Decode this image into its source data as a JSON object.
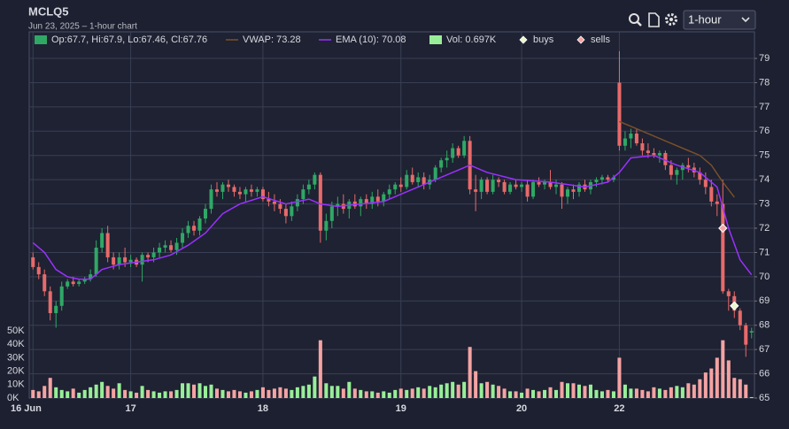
{
  "header": {
    "symbol": "MCLQ5",
    "subtitle": "Jun 23, 2025 – 1-hour chart",
    "interval": "1-hour"
  },
  "chart_data": {
    "type": "candlestick",
    "up_color": "#2fa865",
    "down_color": "#e86a6a",
    "volume_up_color": "#98ee98",
    "volume_down_color": "#f4a3a3",
    "xlim": [
      -0.5,
      125.5
    ],
    "xticks": [
      {
        "value": 0,
        "label": "16 Jun"
      },
      {
        "value": 17,
        "label": "17"
      },
      {
        "value": 40,
        "label": "18"
      },
      {
        "value": 64,
        "label": "19"
      },
      {
        "value": 85,
        "label": "20"
      },
      {
        "value": 102,
        "label": "22"
      }
    ],
    "ylim": [
      65,
      80
    ],
    "yticks": [
      65,
      66,
      67,
      68,
      69,
      70,
      71,
      72,
      73,
      74,
      75,
      76,
      77,
      78,
      79
    ],
    "vlim": [
      0,
      60
    ],
    "vticks": [
      {
        "value": 0,
        "label": "0K"
      },
      {
        "value": 10,
        "label": "10K"
      },
      {
        "value": 20,
        "label": "20K"
      },
      {
        "value": 30,
        "label": "30K"
      },
      {
        "value": 40,
        "label": "40K"
      },
      {
        "value": 50,
        "label": "50K"
      }
    ],
    "grid": true,
    "legend": {
      "ohlc": "Op:67.7, Hi:67.9, Lo:67.46, Cl:67.76",
      "volume": "Vol: 0.697K"
    },
    "candles": [
      [
        70.8,
        71.0,
        70.3,
        70.4
      ],
      [
        70.4,
        70.6,
        69.9,
        70.1
      ],
      [
        70.1,
        70.3,
        69.2,
        69.4
      ],
      [
        69.4,
        69.6,
        68.2,
        68.5
      ],
      [
        68.5,
        69.0,
        67.9,
        68.8
      ],
      [
        68.8,
        69.8,
        68.6,
        69.6
      ],
      [
        69.6,
        69.9,
        69.5,
        69.8
      ],
      [
        69.8,
        70.0,
        69.6,
        69.7
      ],
      [
        69.7,
        69.9,
        69.6,
        69.8
      ],
      [
        69.8,
        70.0,
        69.7,
        69.9
      ],
      [
        69.9,
        70.3,
        69.8,
        70.1
      ],
      [
        70.1,
        71.5,
        70.0,
        71.2
      ],
      [
        71.2,
        72.0,
        71.0,
        71.8
      ],
      [
        71.8,
        72.1,
        70.6,
        70.8
      ],
      [
        70.8,
        71.0,
        70.3,
        70.5
      ],
      [
        70.5,
        71.0,
        70.3,
        70.8
      ],
      [
        70.8,
        71.2,
        70.4,
        70.6
      ],
      [
        70.6,
        70.9,
        70.4,
        70.7
      ],
      [
        70.7,
        70.8,
        70.4,
        70.5
      ],
      [
        70.5,
        71.0,
        69.8,
        70.9
      ],
      [
        70.9,
        71.0,
        70.6,
        70.8
      ],
      [
        70.8,
        71.2,
        70.6,
        71.0
      ],
      [
        71.0,
        71.4,
        70.8,
        71.2
      ],
      [
        71.2,
        71.5,
        71.0,
        71.3
      ],
      [
        71.3,
        71.5,
        71.0,
        71.1
      ],
      [
        71.1,
        71.6,
        70.9,
        71.4
      ],
      [
        71.4,
        72.0,
        71.2,
        71.8
      ],
      [
        71.8,
        72.3,
        71.6,
        72.1
      ],
      [
        72.1,
        72.3,
        71.7,
        71.9
      ],
      [
        71.9,
        72.5,
        71.7,
        72.4
      ],
      [
        72.4,
        73.0,
        72.2,
        72.8
      ],
      [
        72.8,
        73.8,
        72.6,
        73.6
      ],
      [
        73.6,
        73.9,
        73.3,
        73.5
      ],
      [
        73.5,
        73.9,
        73.2,
        73.8
      ],
      [
        73.8,
        74.0,
        73.5,
        73.7
      ],
      [
        73.7,
        73.8,
        73.3,
        73.5
      ],
      [
        73.5,
        73.7,
        73.2,
        73.4
      ],
      [
        73.4,
        73.7,
        73.1,
        73.6
      ],
      [
        73.6,
        73.8,
        73.3,
        73.5
      ],
      [
        73.5,
        73.7,
        73.3,
        73.6
      ],
      [
        73.6,
        73.7,
        73.1,
        73.2
      ],
      [
        73.2,
        73.5,
        72.9,
        73.1
      ],
      [
        73.1,
        73.4,
        72.7,
        73.0
      ],
      [
        73.0,
        73.2,
        72.6,
        72.8
      ],
      [
        72.8,
        73.0,
        72.2,
        72.5
      ],
      [
        72.5,
        73.1,
        72.3,
        72.9
      ],
      [
        72.9,
        73.4,
        72.7,
        73.2
      ],
      [
        73.2,
        73.8,
        73.0,
        73.6
      ],
      [
        73.6,
        74.0,
        73.4,
        73.8
      ],
      [
        73.8,
        74.3,
        73.6,
        74.2
      ],
      [
        74.2,
        74.3,
        71.4,
        71.9
      ],
      [
        71.9,
        72.6,
        71.5,
        72.3
      ],
      [
        72.3,
        73.1,
        72.0,
        72.9
      ],
      [
        72.9,
        73.3,
        72.5,
        73.0
      ],
      [
        73.0,
        73.4,
        72.6,
        72.8
      ],
      [
        72.8,
        73.2,
        72.4,
        73.1
      ],
      [
        73.1,
        73.4,
        72.8,
        72.9
      ],
      [
        72.9,
        73.3,
        72.5,
        73.2
      ],
      [
        73.2,
        73.4,
        72.8,
        73.0
      ],
      [
        73.0,
        73.5,
        72.8,
        73.3
      ],
      [
        73.3,
        73.6,
        72.9,
        73.1
      ],
      [
        73.1,
        73.5,
        72.9,
        73.4
      ],
      [
        73.4,
        73.8,
        73.2,
        73.6
      ],
      [
        73.6,
        73.9,
        73.4,
        73.8
      ],
      [
        73.8,
        74.1,
        73.5,
        73.7
      ],
      [
        73.7,
        74.4,
        73.6,
        74.2
      ],
      [
        74.2,
        74.5,
        73.8,
        73.9
      ],
      [
        73.9,
        74.3,
        73.7,
        74.1
      ],
      [
        74.1,
        74.3,
        73.6,
        73.8
      ],
      [
        73.8,
        74.2,
        73.6,
        74.0
      ],
      [
        74.0,
        74.6,
        73.9,
        74.5
      ],
      [
        74.5,
        74.9,
        74.3,
        74.8
      ],
      [
        74.8,
        75.2,
        74.5,
        74.9
      ],
      [
        74.9,
        75.5,
        74.7,
        75.3
      ],
      [
        75.3,
        75.4,
        74.9,
        75.0
      ],
      [
        75.0,
        75.8,
        74.9,
        75.6
      ],
      [
        75.6,
        75.8,
        73.4,
        73.6
      ],
      [
        73.6,
        74.2,
        72.7,
        73.5
      ],
      [
        73.5,
        74.1,
        73.2,
        74.0
      ],
      [
        74.0,
        74.1,
        73.4,
        73.5
      ],
      [
        73.5,
        74.2,
        73.4,
        74.0
      ],
      [
        74.0,
        74.1,
        73.7,
        73.9
      ],
      [
        73.9,
        74.0,
        73.4,
        73.5
      ],
      [
        73.5,
        73.9,
        73.4,
        73.8
      ],
      [
        73.8,
        74.0,
        73.6,
        73.7
      ],
      [
        73.7,
        73.9,
        73.5,
        73.8
      ],
      [
        73.8,
        74.0,
        73.1,
        73.3
      ],
      [
        73.3,
        74.0,
        73.2,
        73.9
      ],
      [
        73.9,
        74.1,
        73.7,
        73.8
      ],
      [
        73.8,
        74.0,
        73.6,
        73.9
      ],
      [
        73.9,
        74.4,
        73.6,
        73.7
      ],
      [
        73.7,
        74.0,
        73.4,
        73.8
      ],
      [
        73.8,
        73.9,
        72.8,
        73.3
      ],
      [
        73.3,
        73.7,
        73.0,
        73.6
      ],
      [
        73.6,
        73.8,
        73.2,
        73.5
      ],
      [
        73.5,
        73.9,
        73.3,
        73.8
      ],
      [
        73.8,
        74.0,
        73.5,
        73.6
      ],
      [
        73.6,
        74.0,
        73.4,
        73.9
      ],
      [
        73.9,
        74.1,
        73.7,
        74.0
      ],
      [
        74.0,
        74.2,
        73.8,
        74.1
      ],
      [
        74.1,
        74.2,
        73.9,
        74.0
      ],
      [
        74.0,
        74.2,
        73.9,
        74.1
      ],
      [
        78.0,
        79.3,
        75.2,
        75.4
      ],
      [
        75.4,
        76.0,
        75.2,
        75.7
      ],
      [
        75.7,
        76.1,
        75.3,
        75.9
      ],
      [
        75.9,
        76.1,
        75.4,
        75.5
      ],
      [
        75.5,
        75.7,
        75.0,
        75.2
      ],
      [
        75.2,
        75.5,
        74.9,
        75.1
      ],
      [
        75.1,
        75.3,
        74.9,
        75.0
      ],
      [
        75.0,
        75.2,
        74.7,
        75.1
      ],
      [
        75.1,
        75.2,
        74.4,
        74.6
      ],
      [
        74.6,
        74.8,
        74.0,
        74.2
      ],
      [
        74.2,
        74.5,
        73.8,
        74.4
      ],
      [
        74.4,
        74.7,
        74.0,
        74.6
      ],
      [
        74.6,
        74.9,
        74.3,
        74.5
      ],
      [
        74.5,
        74.7,
        74.1,
        74.3
      ],
      [
        74.3,
        74.5,
        73.8,
        74.0
      ],
      [
        74.0,
        74.3,
        73.4,
        73.7
      ],
      [
        73.7,
        74.0,
        72.9,
        73.1
      ],
      [
        73.1,
        73.4,
        72.5,
        73.0
      ],
      [
        73.0,
        74.0,
        69.3,
        69.4
      ],
      [
        69.4,
        69.5,
        68.6,
        69.2
      ],
      [
        69.2,
        69.4,
        68.3,
        68.6
      ],
      [
        68.6,
        68.7,
        67.8,
        68.0
      ],
      [
        68.0,
        68.1,
        66.7,
        67.2
      ],
      [
        67.7,
        67.9,
        67.46,
        67.76
      ]
    ],
    "volumes": [
      6,
      5,
      9,
      15,
      8,
      6,
      5,
      7,
      4,
      6,
      8,
      10,
      12,
      9,
      7,
      11,
      6,
      5,
      4,
      9,
      6,
      5,
      4,
      5,
      5,
      6,
      11,
      11,
      10,
      11,
      9,
      10,
      7,
      6,
      5,
      6,
      5,
      4,
      5,
      6,
      8,
      6,
      7,
      8,
      7,
      6,
      8,
      9,
      10,
      16,
      43,
      11,
      9,
      9,
      7,
      12,
      7,
      6,
      5,
      5,
      4,
      5,
      4,
      6,
      7,
      6,
      7,
      8,
      7,
      9,
      8,
      10,
      11,
      12,
      10,
      12,
      38,
      20,
      11,
      12,
      10,
      9,
      7,
      5,
      5,
      4,
      7,
      6,
      5,
      6,
      8,
      6,
      12,
      11,
      11,
      10,
      9,
      10,
      6,
      5,
      6,
      5,
      30,
      10,
      7,
      7,
      6,
      5,
      8,
      7,
      6,
      8,
      9,
      8,
      11,
      10,
      14,
      19,
      22,
      30,
      43,
      28,
      15,
      14,
      10,
      0.697
    ],
    "series": [
      {
        "name": "VWAP: 73.28",
        "color": "#7a4f2a",
        "x": [
          102,
          104,
          106,
          108,
          110,
          112,
          114,
          116,
          118,
          120,
          122
        ],
        "values": [
          76.4,
          76.2,
          76.0,
          75.8,
          75.6,
          75.4,
          75.2,
          75.0,
          74.6,
          73.9,
          73.28
        ]
      },
      {
        "name": "EMA (10): 70.08",
        "color": "#9b30ff",
        "x": [
          0,
          2,
          4,
          6,
          8,
          10,
          12,
          15,
          18,
          21,
          24,
          27,
          30,
          33,
          36,
          40,
          44,
          48,
          50,
          53,
          57,
          61,
          64,
          68,
          72,
          76,
          79,
          84,
          90,
          96,
          100,
          102,
          104,
          108,
          112,
          116,
          119,
          121,
          123,
          125
        ],
        "values": [
          71.4,
          71.0,
          70.3,
          70.0,
          69.9,
          69.9,
          70.3,
          70.5,
          70.6,
          70.7,
          70.9,
          71.3,
          71.8,
          72.6,
          73.0,
          73.3,
          73.0,
          73.2,
          73.0,
          72.9,
          73.0,
          73.1,
          73.4,
          73.8,
          74.2,
          74.6,
          74.3,
          74.0,
          73.9,
          73.7,
          73.9,
          74.3,
          74.9,
          75.0,
          74.6,
          74.3,
          73.7,
          72.0,
          70.7,
          70.08
        ]
      }
    ],
    "markers": [
      {
        "name": "buys",
        "color": "#eaf7c8",
        "x": [
          122
        ],
        "values": [
          68.8
        ]
      },
      {
        "name": "sells",
        "color": "#f4a3a3",
        "x": [
          120
        ],
        "values": [
          72.0
        ]
      }
    ]
  }
}
